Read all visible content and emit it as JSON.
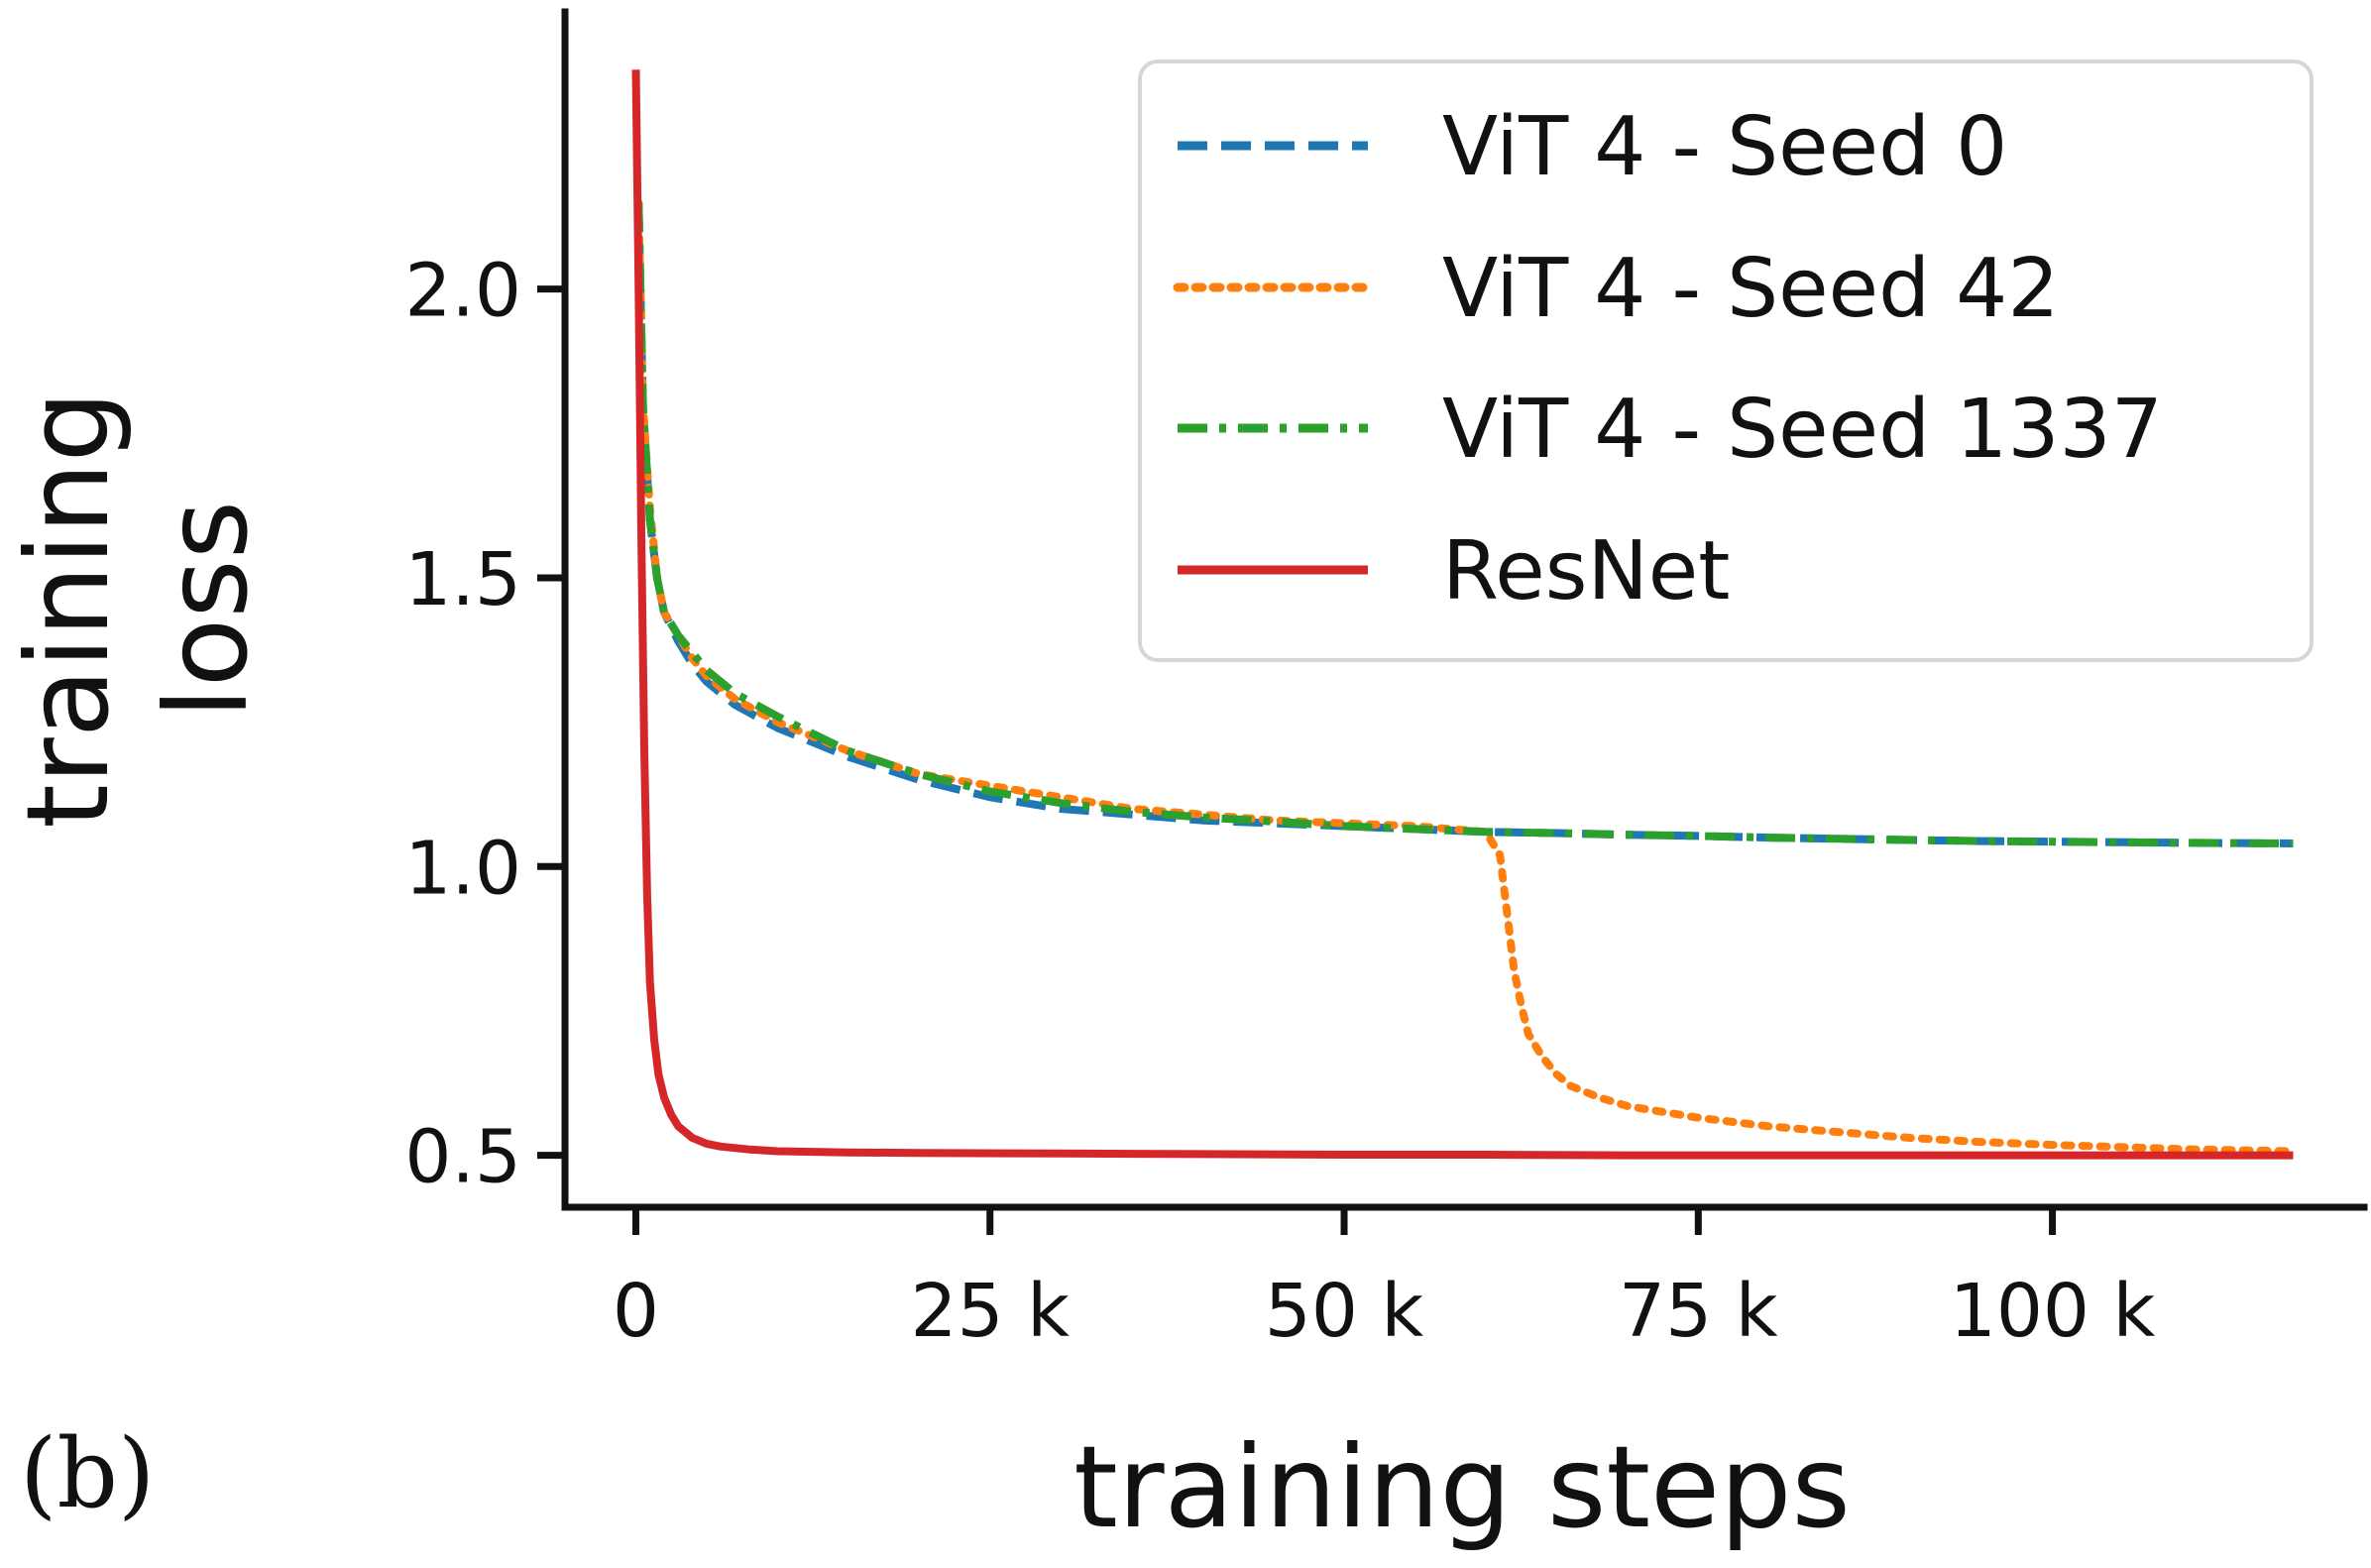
{
  "chart_data": {
    "type": "line",
    "panel_label": "(b)",
    "xlabel": "training steps",
    "ylabel": [
      "training",
      "loss"
    ],
    "xlim": [
      -5000,
      122000
    ],
    "ylim": [
      0.41,
      2.48
    ],
    "xticks": [
      0,
      25000,
      50000,
      75000,
      100000
    ],
    "xtick_labels": [
      "0",
      "25 k",
      "50 k",
      "75 k",
      "100 k"
    ],
    "yticks": [
      0.5,
      1.0,
      1.5,
      2.0
    ],
    "ytick_labels": [
      "0.5",
      "1.0",
      "1.5",
      "2.0"
    ],
    "grid": false,
    "legend_position": "top-right",
    "series": [
      {
        "name": "ViT 4 - Seed 0",
        "color": "#1f77b4",
        "style": "dashed",
        "x": [
          200,
          500,
          1000,
          1500,
          2000,
          3000,
          4000,
          5000,
          7000,
          10000,
          15000,
          20000,
          25000,
          30000,
          35000,
          40000,
          45000,
          50000,
          55000,
          60000,
          65000,
          70000,
          75000,
          80000,
          85000,
          90000,
          95000,
          100000,
          105000,
          110000,
          117000
        ],
        "values": [
          2.15,
          1.8,
          1.6,
          1.5,
          1.44,
          1.39,
          1.35,
          1.32,
          1.28,
          1.24,
          1.19,
          1.15,
          1.12,
          1.1,
          1.09,
          1.08,
          1.075,
          1.07,
          1.065,
          1.06,
          1.058,
          1.055,
          1.053,
          1.05,
          1.048,
          1.046,
          1.044,
          1.043,
          1.042,
          1.041,
          1.04
        ]
      },
      {
        "name": "ViT 4 - Seed 42",
        "color": "#ff7f0e",
        "style": "dotted",
        "x": [
          200,
          500,
          1000,
          1500,
          2000,
          3000,
          4000,
          5000,
          7000,
          10000,
          15000,
          20000,
          25000,
          30000,
          35000,
          40000,
          45000,
          50000,
          55000,
          60000,
          61000,
          61500,
          62000,
          62500,
          63000,
          64000,
          65000,
          66000,
          68000,
          70000,
          75000,
          80000,
          85000,
          90000,
          95000,
          100000,
          105000,
          110000,
          117000
        ],
        "values": [
          2.15,
          1.8,
          1.62,
          1.5,
          1.44,
          1.4,
          1.36,
          1.33,
          1.29,
          1.25,
          1.2,
          1.16,
          1.14,
          1.12,
          1.1,
          1.09,
          1.08,
          1.075,
          1.07,
          1.06,
          1.02,
          0.92,
          0.82,
          0.76,
          0.71,
          0.67,
          0.64,
          0.62,
          0.6,
          0.585,
          0.565,
          0.55,
          0.54,
          0.53,
          0.523,
          0.518,
          0.514,
          0.51,
          0.507
        ]
      },
      {
        "name": "ViT 4 - Seed 1337",
        "color": "#2ca02c",
        "style": "dashdot",
        "x": [
          200,
          500,
          1000,
          1500,
          2000,
          3000,
          4000,
          5000,
          7000,
          10000,
          15000,
          20000,
          25000,
          30000,
          35000,
          40000,
          45000,
          50000,
          55000,
          60000,
          65000,
          70000,
          75000,
          80000,
          85000,
          90000,
          95000,
          100000,
          105000,
          110000,
          117000
        ],
        "values": [
          2.15,
          1.8,
          1.6,
          1.5,
          1.44,
          1.4,
          1.37,
          1.34,
          1.3,
          1.26,
          1.2,
          1.16,
          1.13,
          1.11,
          1.095,
          1.085,
          1.078,
          1.07,
          1.065,
          1.06,
          1.058,
          1.055,
          1.053,
          1.05,
          1.048,
          1.046,
          1.044,
          1.043,
          1.042,
          1.041,
          1.04
        ]
      },
      {
        "name": "ResNet",
        "color": "#d62728",
        "style": "solid",
        "x": [
          0,
          200,
          400,
          600,
          800,
          1000,
          1300,
          1600,
          2000,
          2500,
          3000,
          4000,
          5000,
          6000,
          8000,
          10000,
          15000,
          20000,
          30000,
          40000,
          50000,
          60000,
          70000,
          80000,
          90000,
          100000,
          110000,
          117000
        ],
        "values": [
          2.38,
          2.0,
          1.55,
          1.2,
          0.95,
          0.8,
          0.7,
          0.64,
          0.6,
          0.57,
          0.55,
          0.53,
          0.52,
          0.515,
          0.51,
          0.507,
          0.505,
          0.504,
          0.503,
          0.502,
          0.501,
          0.501,
          0.5,
          0.5,
          0.5,
          0.5,
          0.5,
          0.5
        ]
      }
    ]
  }
}
